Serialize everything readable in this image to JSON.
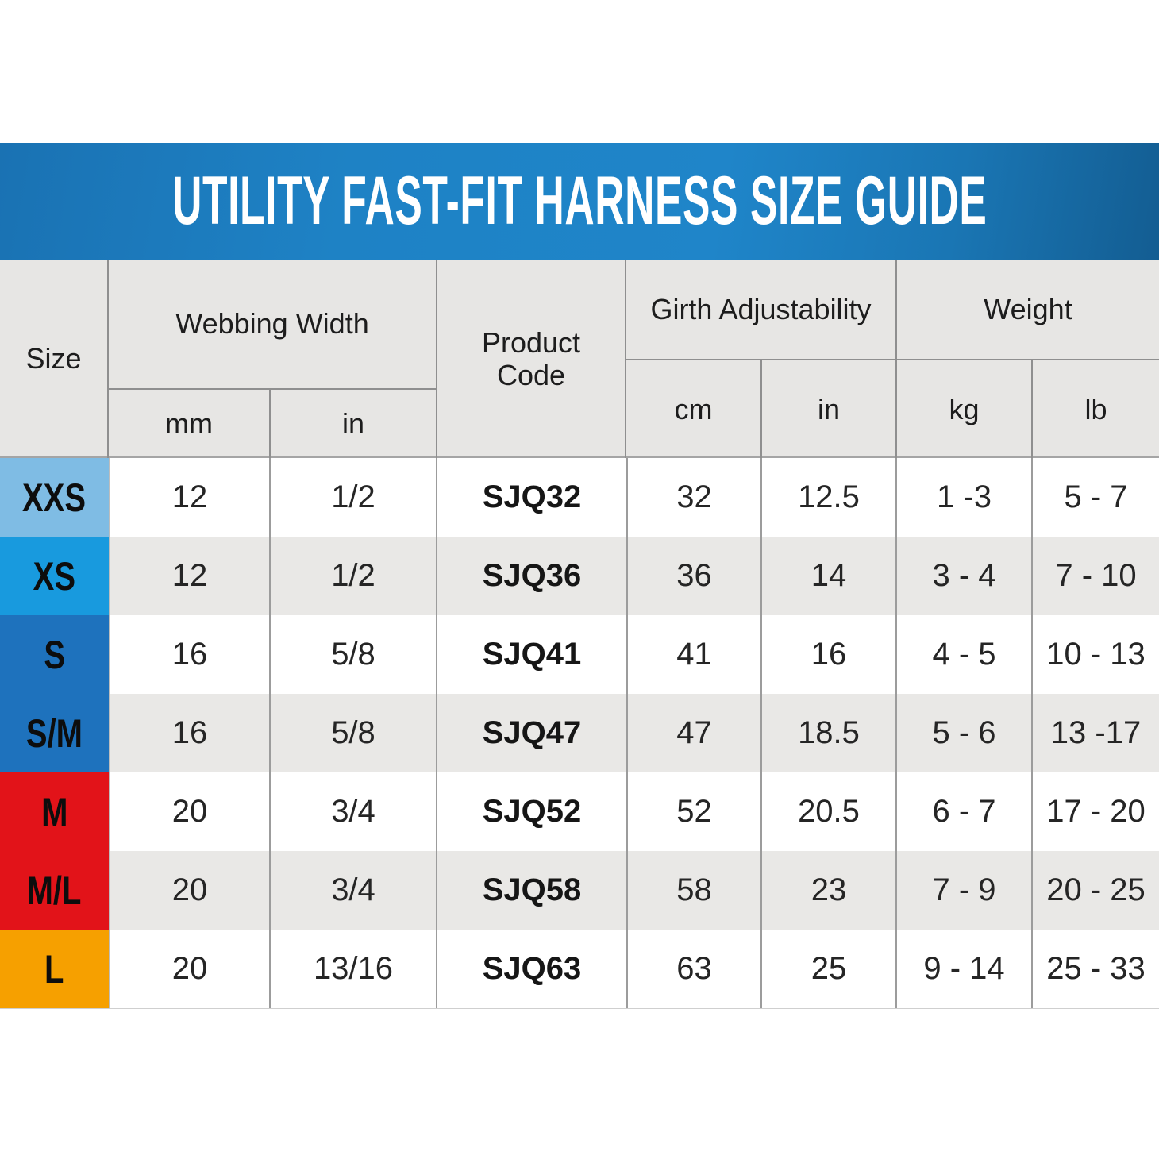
{
  "banner": {
    "title": "UTILITY FAST-FIT HARNESS SIZE GUIDE",
    "bg_color_left": "#1a72b3",
    "bg_color_mid": "#1f85c9",
    "bg_color_right": "#135d92",
    "text_color": "#ffffff"
  },
  "table": {
    "header_bg": "#e7e6e4",
    "alt_row_bg": "#e9e8e6",
    "border_color": "#8f8f8f",
    "header": {
      "size": "Size",
      "webbing_width": "Webbing Width",
      "webbing_units": {
        "mm": "mm",
        "in": "in"
      },
      "product_code": "Product Code",
      "girth_adjustability": "Girth Adjustability",
      "girth_units": {
        "cm": "cm",
        "in": "in"
      },
      "weight": "Weight",
      "weight_units": {
        "kg": "kg",
        "lb": "lb"
      }
    },
    "rows": [
      {
        "size": "XXS",
        "size_color": "#7fbce4",
        "webbing_mm": "12",
        "webbing_in": "1/2",
        "product_code": "SJQ32",
        "girth_cm": "32",
        "girth_in": "12.5",
        "weight_kg": "1 -3",
        "weight_lb": "5 - 7"
      },
      {
        "size": "XS",
        "size_color": "#189ade",
        "webbing_mm": "12",
        "webbing_in": "1/2",
        "product_code": "SJQ36",
        "girth_cm": "36",
        "girth_in": "14",
        "weight_kg": "3 - 4",
        "weight_lb": "7 - 10"
      },
      {
        "size": "S",
        "size_color": "#1e72bd",
        "webbing_mm": "16",
        "webbing_in": "5/8",
        "product_code": "SJQ41",
        "girth_cm": "41",
        "girth_in": "16",
        "weight_kg": "4 - 5",
        "weight_lb": "10 - 13"
      },
      {
        "size": "S/M",
        "size_color": "#1e72bd",
        "webbing_mm": "16",
        "webbing_in": "5/8",
        "product_code": "SJQ47",
        "girth_cm": "47",
        "girth_in": "18.5",
        "weight_kg": "5 - 6",
        "weight_lb": "13 -17"
      },
      {
        "size": "M",
        "size_color": "#e21319",
        "webbing_mm": "20",
        "webbing_in": "3/4",
        "product_code": "SJQ52",
        "girth_cm": "52",
        "girth_in": "20.5",
        "weight_kg": "6 - 7",
        "weight_lb": "17 - 20"
      },
      {
        "size": "M/L",
        "size_color": "#e21319",
        "webbing_mm": "20",
        "webbing_in": "3/4",
        "product_code": "SJQ58",
        "girth_cm": "58",
        "girth_in": "23",
        "weight_kg": "7 - 9",
        "weight_lb": "20 - 25"
      },
      {
        "size": "L",
        "size_color": "#f6a000",
        "webbing_mm": "20",
        "webbing_in": "13/16",
        "product_code": "SJQ63",
        "girth_cm": "63",
        "girth_in": "25",
        "weight_kg": "9 - 14",
        "weight_lb": "25 - 33"
      }
    ]
  }
}
